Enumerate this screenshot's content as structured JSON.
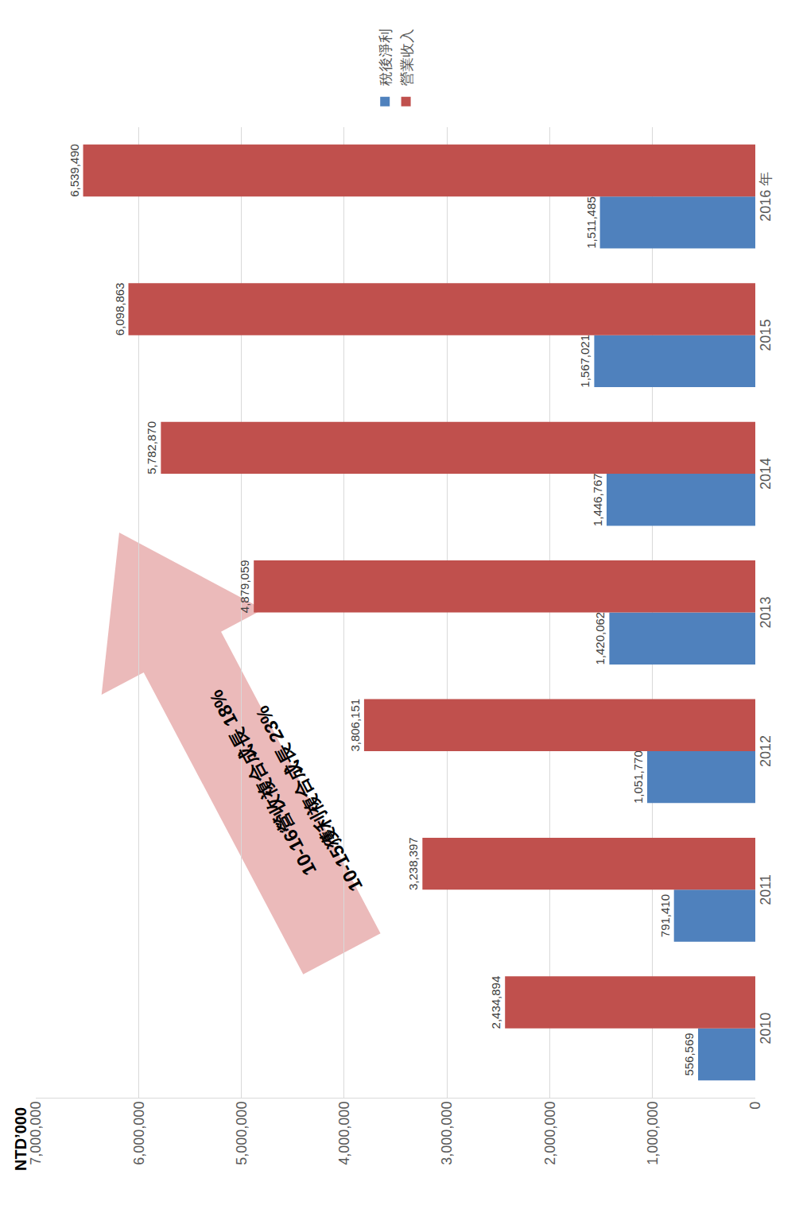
{
  "chart_data": {
    "type": "bar",
    "ylabel": "NTD’000",
    "categories": [
      "2010",
      "2011",
      "2012",
      "2013",
      "2014",
      "2015",
      "2016 年"
    ],
    "series": [
      {
        "name": "稅後淨利",
        "color": "#4f81bd",
        "values": [
          556569,
          791410,
          1051770,
          1420062,
          1446767,
          1567021,
          1511485
        ],
        "value_labels": [
          "556,569",
          "791,410",
          "1,051,770",
          "1,420,062",
          "1,446,767",
          "1,567,021",
          "1,511,485"
        ]
      },
      {
        "name": "營業收入",
        "color": "#c0504d",
        "values": [
          2434894,
          3238397,
          3806151,
          4879059,
          5782870,
          6098863,
          6539490
        ],
        "value_labels": [
          "2,434,894",
          "3,238,397",
          "3,806,151",
          "4,879,059",
          "5,782,870",
          "6,098,863",
          "6,539,490"
        ]
      }
    ],
    "ylim": [
      0,
      7000000
    ],
    "yticks": [
      0,
      {
        "value": 1000000,
        "label": "1,000,000"
      },
      {
        "value": 2000000,
        "label": "2,000,000"
      },
      {
        "value": 3000000,
        "label": "3,000,000"
      },
      {
        "value": 4000000,
        "label": "4,000,000"
      },
      {
        "value": 5000000,
        "label": "5,000,000"
      },
      {
        "value": 6000000,
        "label": "6,000,000"
      },
      {
        "value": 7000000,
        "label": "7,000,000"
      }
    ],
    "grid": true,
    "legend": "right",
    "data_labels": true,
    "annotations": [
      {
        "text": "10-16營收複合成長 18%"
      },
      {
        "text": "10-15獲利複合成長 23%"
      }
    ]
  }
}
